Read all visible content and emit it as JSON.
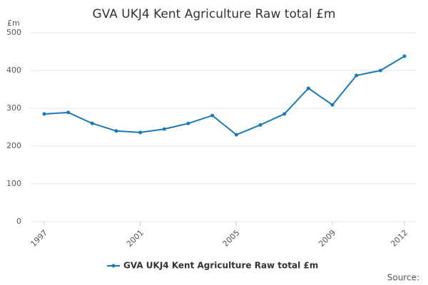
{
  "chart_data": {
    "type": "line",
    "title": "GVA UKJ4 Kent Agriculture Raw total £m",
    "y_unit": "£m",
    "x": [
      1997,
      1998,
      1999,
      2000,
      2001,
      2002,
      2003,
      2004,
      2005,
      2006,
      2007,
      2008,
      2009,
      2010,
      2011,
      2012
    ],
    "series": [
      {
        "name": "GVA UKJ4 Kent Agriculture Raw total £m",
        "color": "#1a7ab8",
        "values": [
          285,
          289,
          260,
          240,
          236,
          245,
          260,
          281,
          230,
          256,
          285,
          353,
          309,
          387,
          400,
          438
        ]
      }
    ],
    "xlim": [
      1997,
      2012
    ],
    "xticks": [
      1997,
      2001,
      2005,
      2009,
      2012
    ],
    "ylim": [
      0,
      500
    ],
    "yticks": [
      0,
      100,
      200,
      300,
      400,
      500
    ],
    "grid": true,
    "legend": "bottom",
    "source_label": "Source:"
  }
}
